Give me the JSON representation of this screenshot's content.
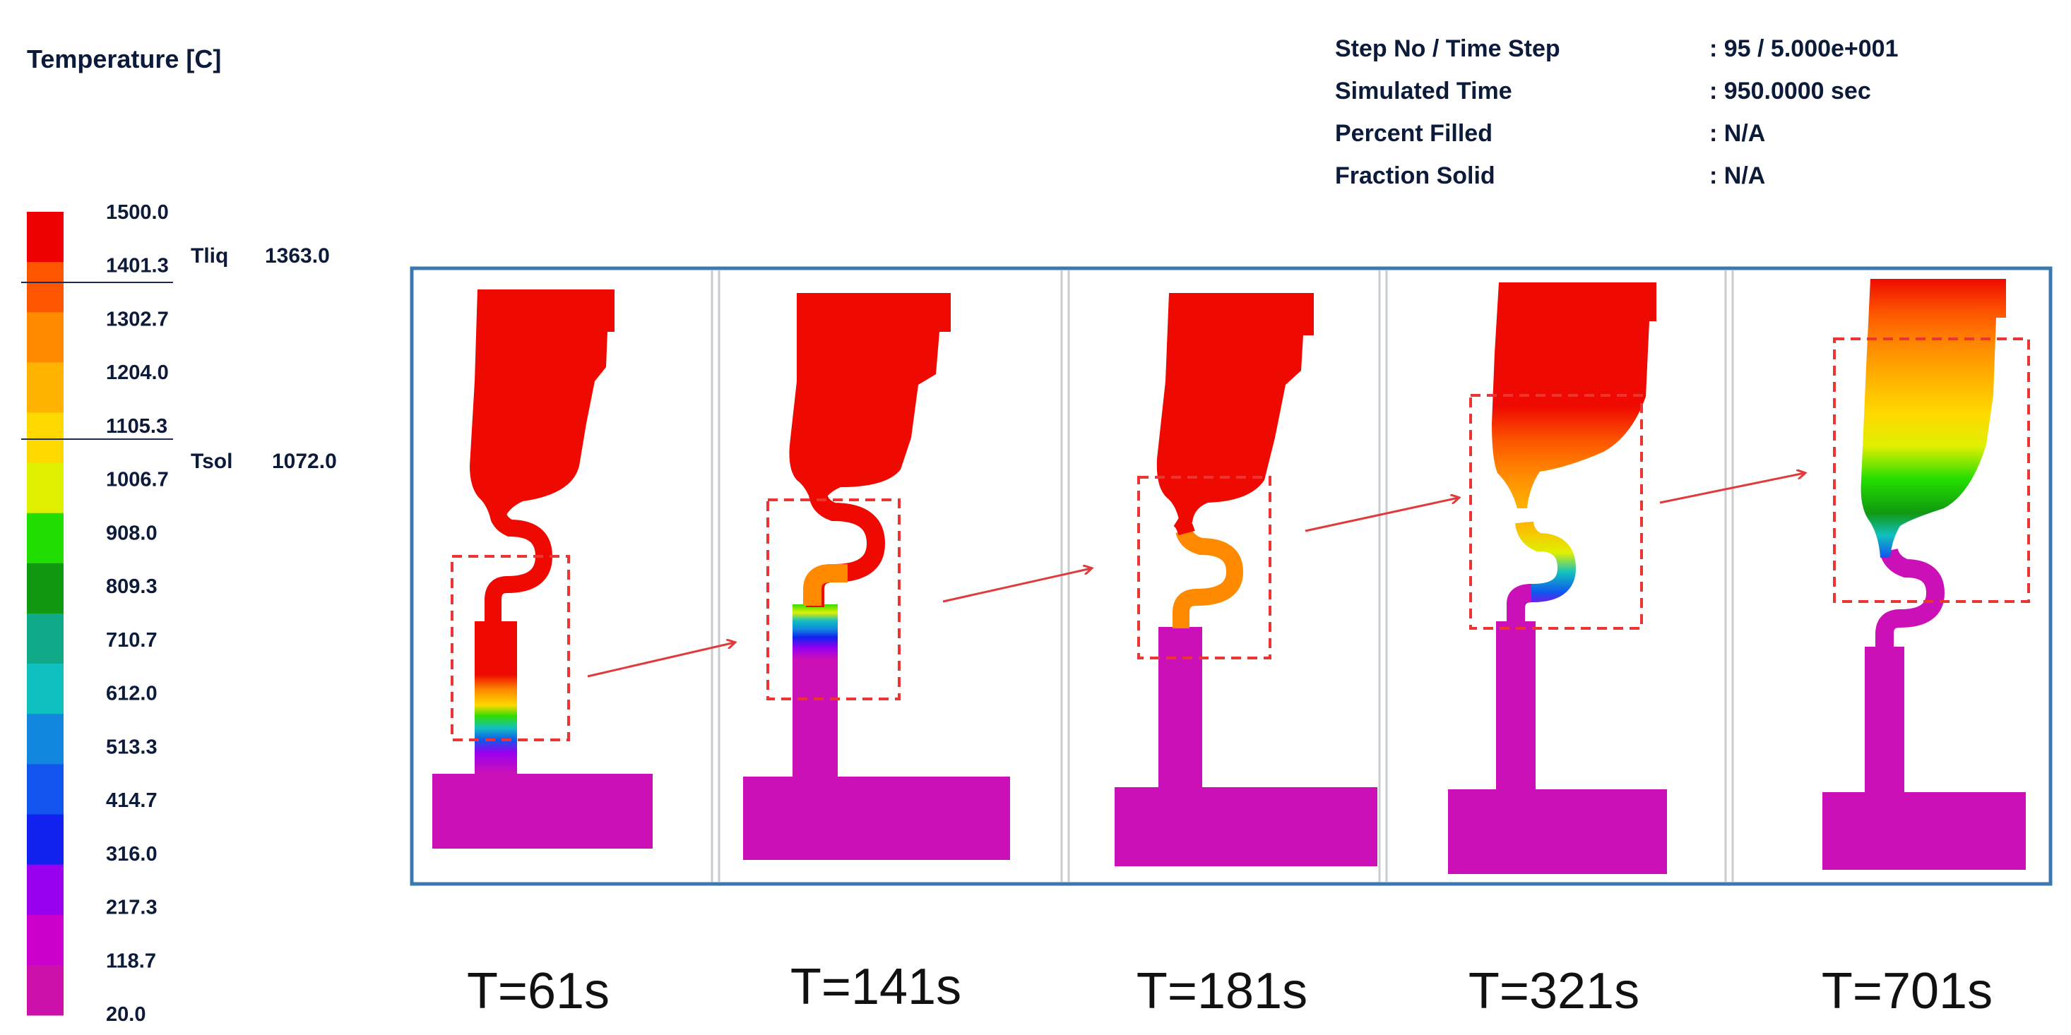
{
  "legend": {
    "title": "Temperature  [C]",
    "ticks": [
      "1500.0",
      "1401.3",
      "1302.7",
      "1204.0",
      "1105.3",
      "1006.7",
      "908.0",
      "809.3",
      "710.7",
      "612.0",
      "513.3",
      "414.7",
      "316.0",
      "217.3",
      "118.7",
      "20.0"
    ],
    "colors": [
      "#ee0000",
      "#fe5500",
      "#ff8a00",
      "#ffb300",
      "#ffd800",
      "#e0f000",
      "#22dd00",
      "#119911",
      "#10aa88",
      "#10c0c0",
      "#1188dd",
      "#1155ee",
      "#1122ee",
      "#9900ee",
      "#cc00cc",
      "#cc10aa"
    ],
    "tliq_label": "Tliq",
    "tliq_value": "1363.0",
    "tsol_label": "Tsol",
    "tsol_value": "1072.0"
  },
  "info": {
    "rows": [
      {
        "label": "Step No / Time Step",
        "value": ": 95  /  5.000e+001"
      },
      {
        "label": "Simulated Time",
        "value": ": 950.0000 sec"
      },
      {
        "label": "Percent Filled",
        "value": ": N/A"
      },
      {
        "label": "Fraction Solid",
        "value": ": N/A"
      }
    ]
  },
  "frames": [
    {
      "caption": "T=61s"
    },
    {
      "caption": "T=141s"
    },
    {
      "caption": "T=181s"
    },
    {
      "caption": "T=321s"
    },
    {
      "caption": "T=701s"
    }
  ],
  "palette": {
    "hot": "#ee0a00",
    "cold": "#cc10b8",
    "panel_border": "#3a78b0",
    "dashed_box": "#ee3333",
    "arrow": "#e03a3a"
  }
}
